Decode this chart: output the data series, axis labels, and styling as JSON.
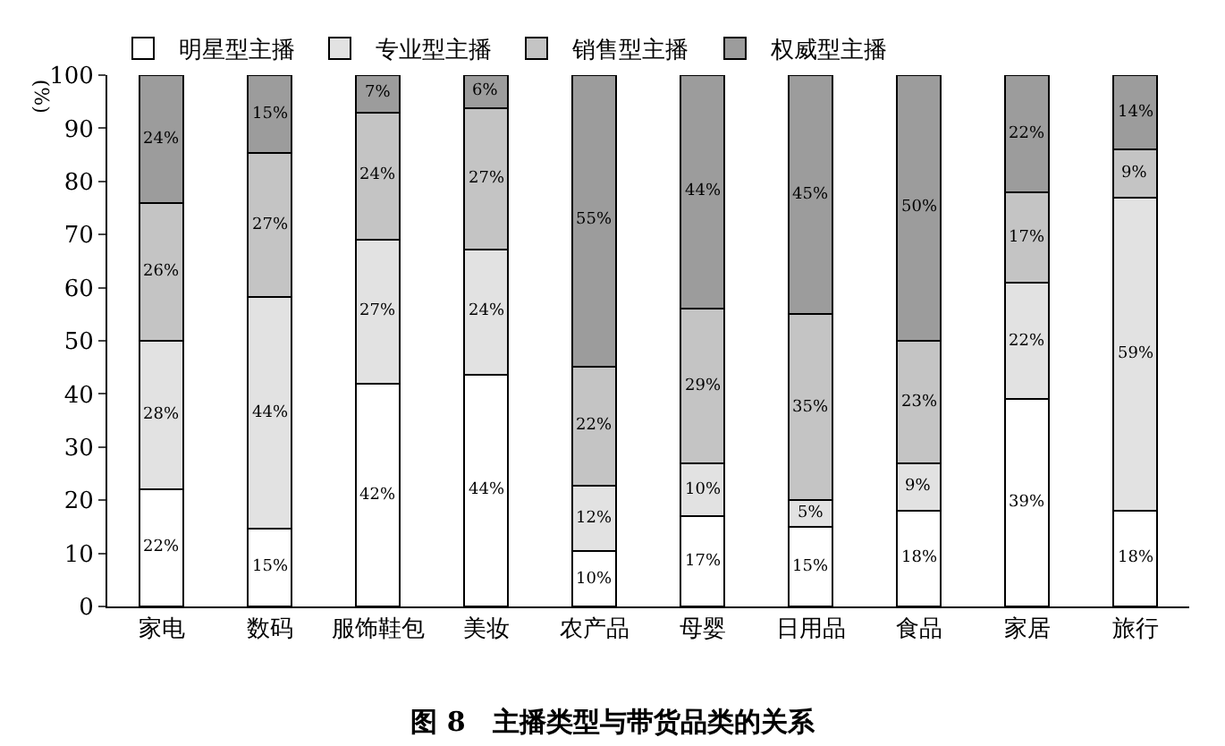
{
  "chart_data": {
    "type": "bar",
    "stacked": true,
    "title": "图 8　主播类型与带货品类的关系",
    "ylabel": "(%)",
    "categories": [
      "家电",
      "数码",
      "服饰鞋包",
      "美妆",
      "农产品",
      "母婴",
      "日用品",
      "食品",
      "家居",
      "旅行"
    ],
    "series": [
      {
        "name": "明星型主播",
        "color": "#ffffff",
        "values": [
          22,
          14.6,
          42,
          43.6,
          10.4,
          17,
          15,
          18,
          39,
          18
        ],
        "value_labels": [
          "22%",
          "15%",
          "42%",
          "44%",
          "10%",
          "17%",
          "15%",
          "18%",
          "39%",
          "18%"
        ]
      },
      {
        "name": "专业型主播",
        "color": "#e2e2e2",
        "values": [
          28,
          43.6,
          27,
          23.6,
          12.4,
          10,
          5,
          9,
          22,
          59
        ],
        "value_labels": [
          "28%",
          "44%",
          "27%",
          "24%",
          "12%",
          "10%",
          "5%",
          "9%",
          "22%",
          "59%"
        ]
      },
      {
        "name": "销售型主播",
        "color": "#c4c4c4",
        "values": [
          26,
          27.2,
          24,
          26.6,
          22.4,
          29,
          35,
          23,
          17,
          9
        ],
        "value_labels": [
          "26%",
          "27%",
          "24%",
          "27%",
          "22%",
          "29%",
          "35%",
          "23%",
          "17%",
          "9%"
        ]
      },
      {
        "name": "权威型主播",
        "color": "#9c9c9c",
        "values": [
          24,
          14.6,
          7,
          6.2,
          54.8,
          44,
          45,
          50,
          22,
          14
        ],
        "value_labels": [
          "24%",
          "15%",
          "7%",
          "6%",
          "55%",
          "44%",
          "45%",
          "50%",
          "22%",
          "14%"
        ]
      }
    ],
    "ylim": [
      0,
      100
    ],
    "yticks": [
      0,
      10,
      20,
      30,
      40,
      50,
      60,
      70,
      80,
      90,
      100
    ],
    "legend": "top left"
  }
}
